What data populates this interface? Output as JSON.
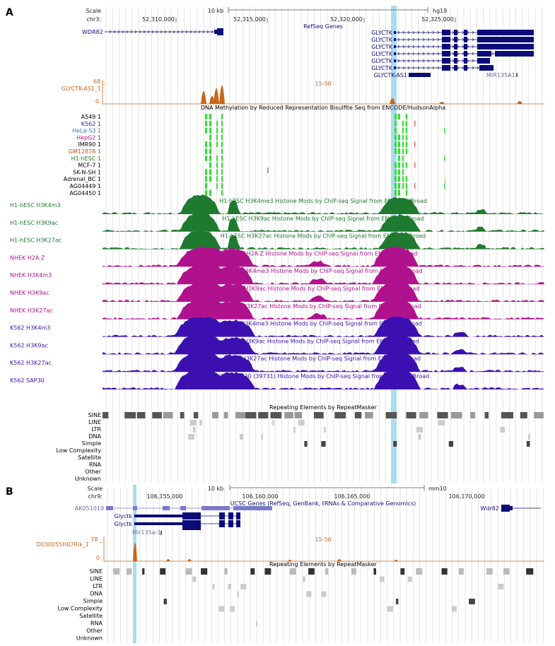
{
  "panels": [
    {
      "letter": "A",
      "scale": {
        "label": "Scale",
        "bar_label": "10 kb",
        "genome": "hg19",
        "chrom": "chr3:",
        "ticks": [
          "52,310,000",
          "52,315,000",
          "52,320,000",
          "52,325,000"
        ]
      },
      "refseq_title": "RefSeq Genes",
      "genes": [
        {
          "name": "WDR82"
        },
        {
          "name": "GLYCTK"
        },
        {
          "name": "GLYCTK"
        },
        {
          "name": "GLYCTK"
        },
        {
          "name": "GLYCTK"
        },
        {
          "name": "GLYCTK"
        },
        {
          "name": "GLYCTK"
        },
        {
          "name": "GLYCTK-AS1"
        },
        {
          "name": "MIR135A1"
        }
      ],
      "expr_track": {
        "name": "GLYCTK-AS1_1",
        "max": "68 _",
        "min": "0",
        "range_label": "15-50",
        "color": "#c8661a"
      },
      "methylation": {
        "title": "DNA Methylation by Reduced Representation Bisulfite Seq from ENCODE/HudsonAlpha",
        "rows": [
          {
            "label": "A549 1",
            "color": "#000000"
          },
          {
            "label": "K562 1",
            "color": "#3a22a0"
          },
          {
            "label": "HeLa-S3 1",
            "color": "#2a7aa8"
          },
          {
            "label": "HepG2 1",
            "color": "#b0127e"
          },
          {
            "label": "IMR90 1",
            "color": "#000000"
          },
          {
            "label": "GM12878 1",
            "color": "#b0501a"
          },
          {
            "label": "H1-hESC 1",
            "color": "#1a7a1a"
          },
          {
            "label": "MCF-7 1",
            "color": "#000000"
          },
          {
            "label": "SK-N-SH 1",
            "color": "#000000"
          },
          {
            "label": "Adrenal_BC 1",
            "color": "#000000"
          },
          {
            "label": "AG04449 1",
            "color": "#000000"
          },
          {
            "label": "AG04450 1",
            "color": "#000000"
          }
        ]
      },
      "histone_tracks": [
        {
          "label": "H1-hESC H3K4m3",
          "title": "H1-hESC H3K4me3 Histone Mods by ChIP-seq Signal from ENCODE/Broad",
          "color": "#1e7a2e"
        },
        {
          "label": "H1-hESC H3K9ac",
          "title": "H1-hESC H3K9ac Histone Mods by ChIP-seq Signal from ENCODE/Broad",
          "color": "#1e7a2e"
        },
        {
          "label": "H1-hESC H3K27ac",
          "title": "H1-hESC H3K27ac Histone Mods by ChIP-seq Signal from ENCODE/Broad",
          "color": "#1e7a2e"
        },
        {
          "label": "NHEK H2A.Z",
          "title": "NHEK H2A.Z Histone Mods by ChIP-seq Signal from ENCODE/Broad",
          "color": "#b0128e"
        },
        {
          "label": "NHEK H3K4m3",
          "title": "NHEK H3K4me3 Histone Mods by ChIP-seq Signal from ENCODE/Broad",
          "color": "#b0128e"
        },
        {
          "label": "NHEK H3K9ac",
          "title": "NHEK H3K9ac Histone Mods by ChIP-seq Signal from ENCODE/Broad",
          "color": "#b0128e"
        },
        {
          "label": "NHEK H3K27ac",
          "title": "NHEK H3K27ac Histone Mods by ChIP-seq Signal from ENCODE/Broad",
          "color": "#b0128e"
        },
        {
          "label": "K562 H3K4m3",
          "title": "K562 H3K4me3 Histone Mods by ChIP-seq Signal from ENCODE/Broad",
          "color": "#3c10b0"
        },
        {
          "label": "K562 H3K9ac",
          "title": "K562 H3K9ac Histone Mods by ChIP-seq Signal from ENCODE/Broad",
          "color": "#3c10b0"
        },
        {
          "label": "K562 H3K27ac",
          "title": "K562 H3K27ac Histone Mods by ChIP-seq Signal from ENCODE/Broad",
          "color": "#3c10b0"
        },
        {
          "label": "K562 SAP30",
          "title": "K562 SAP30 (39731) Histone Mods by ChIP-seq Signal from ENCODE/Broad",
          "color": "#3c10b0"
        }
      ],
      "repeats": {
        "title": "Repeating Elements by RepeatMasker",
        "classes": [
          "SINE",
          "LINE",
          "LTR",
          "DNA",
          "Simple",
          "Low Complexity",
          "Satellite",
          "RNA",
          "Other",
          "Unknown"
        ]
      }
    },
    {
      "letter": "B",
      "scale": {
        "label": "Scale",
        "bar_label": "10 kb",
        "genome": "mm10",
        "chrom": "chr9:",
        "ticks": [
          "106,155,000",
          "106,160,000",
          "106,165,000",
          "106,170,000"
        ]
      },
      "ucsc_title": "UCSC Genes (RefSeq, GenBank, tRNAs & Comparative Genomics)",
      "genes": [
        {
          "name": "AK051019"
        },
        {
          "name": "Glyctk"
        },
        {
          "name": "Glyctk"
        },
        {
          "name": "Mir135a-1"
        },
        {
          "name": "Wdr82"
        }
      ],
      "expr_track": {
        "name": "D030055H07Rik_1",
        "max": "78 _",
        "min": "0",
        "range_label": "15-50",
        "color": "#c8661a"
      },
      "repeats": {
        "title": "Repeating Elements by RepeatMasker",
        "classes": [
          "SINE",
          "LINE",
          "LTR",
          "DNA",
          "Simple",
          "Low Complexity",
          "Satellite",
          "RNA",
          "Other",
          "Unknown"
        ]
      }
    }
  ],
  "colors": {
    "highlight": "#aadcf0",
    "gene": "#0c0c78",
    "gene_light": "#7a7acc",
    "methyl_green": "#33dd33",
    "grid": "#d4d4d4",
    "axis_orange": "#c8661a"
  }
}
